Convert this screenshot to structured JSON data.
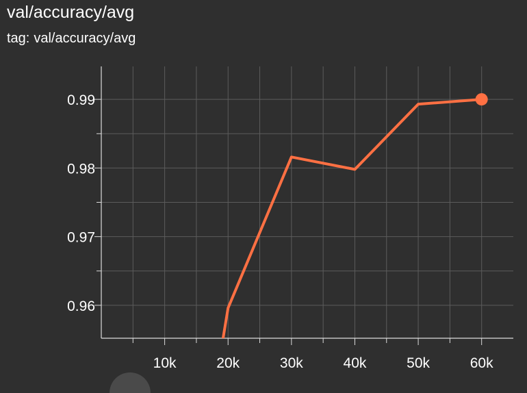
{
  "title": "val/accuracy/avg",
  "tag": {
    "prefix": "tag:",
    "value": "val/accuracy/avg"
  },
  "colors": {
    "background": "#2f2f2f",
    "grid": "#5c5c5c",
    "axis": "#dddddd",
    "series": "#ff7043",
    "text": "#ffffff"
  },
  "chart_data": {
    "type": "line",
    "title": "val/accuracy/avg",
    "xlabel": "",
    "ylabel": "",
    "xlim": [
      0,
      65000
    ],
    "ylim": [
      0.9552,
      0.9948
    ],
    "x_ticks": [
      10000,
      20000,
      30000,
      40000,
      50000,
      60000
    ],
    "x_tick_labels": [
      "10k",
      "20k",
      "30k",
      "40k",
      "50k",
      "60k"
    ],
    "y_ticks": [
      0.96,
      0.97,
      0.98,
      0.99
    ],
    "y_tick_labels": [
      "0.96",
      "0.97",
      "0.98",
      "0.99"
    ],
    "grid": true,
    "legend": "none",
    "series": [
      {
        "color": "#ff7043",
        "x": [
          19000,
          20000,
          30000,
          40000,
          50000,
          60000
        ],
        "y": [
          0.954,
          0.9596,
          0.9816,
          0.9798,
          0.9893,
          0.99
        ],
        "highlight_last_point": true
      }
    ]
  }
}
